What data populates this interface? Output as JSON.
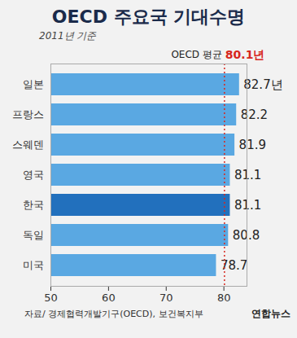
{
  "chart_data": {
    "type": "bar",
    "orientation": "horizontal",
    "title": "OECD 주요국 기대수명",
    "subtitle": "2011년 기준",
    "categories": [
      "일본",
      "프랑스",
      "스웨덴",
      "영국",
      "한국",
      "독일",
      "미국"
    ],
    "values": [
      82.7,
      82.2,
      81.9,
      81.1,
      81.1,
      80.8,
      78.7
    ],
    "value_labels": [
      "82.7년",
      "82.2",
      "81.9",
      "81.1",
      "81.1",
      "80.8",
      "78.7"
    ],
    "data_labels": true,
    "colors": [
      "#5aa8e2",
      "#5aa8e2",
      "#5aa8e2",
      "#5aa8e2",
      "#2270bd",
      "#5aa8e2",
      "#5aa8e2"
    ],
    "xlim": [
      50,
      84
    ],
    "xticks": [
      50,
      60,
      70,
      80
    ],
    "grid": false,
    "annotations": [
      {
        "text": "OECD 평균",
        "value": 80.1,
        "label": "80.1년",
        "color": "#d7261e"
      }
    ],
    "source": "자료/ 경제협력개발기구(OECD), 보건복지부",
    "credit": "연합뉴스"
  }
}
